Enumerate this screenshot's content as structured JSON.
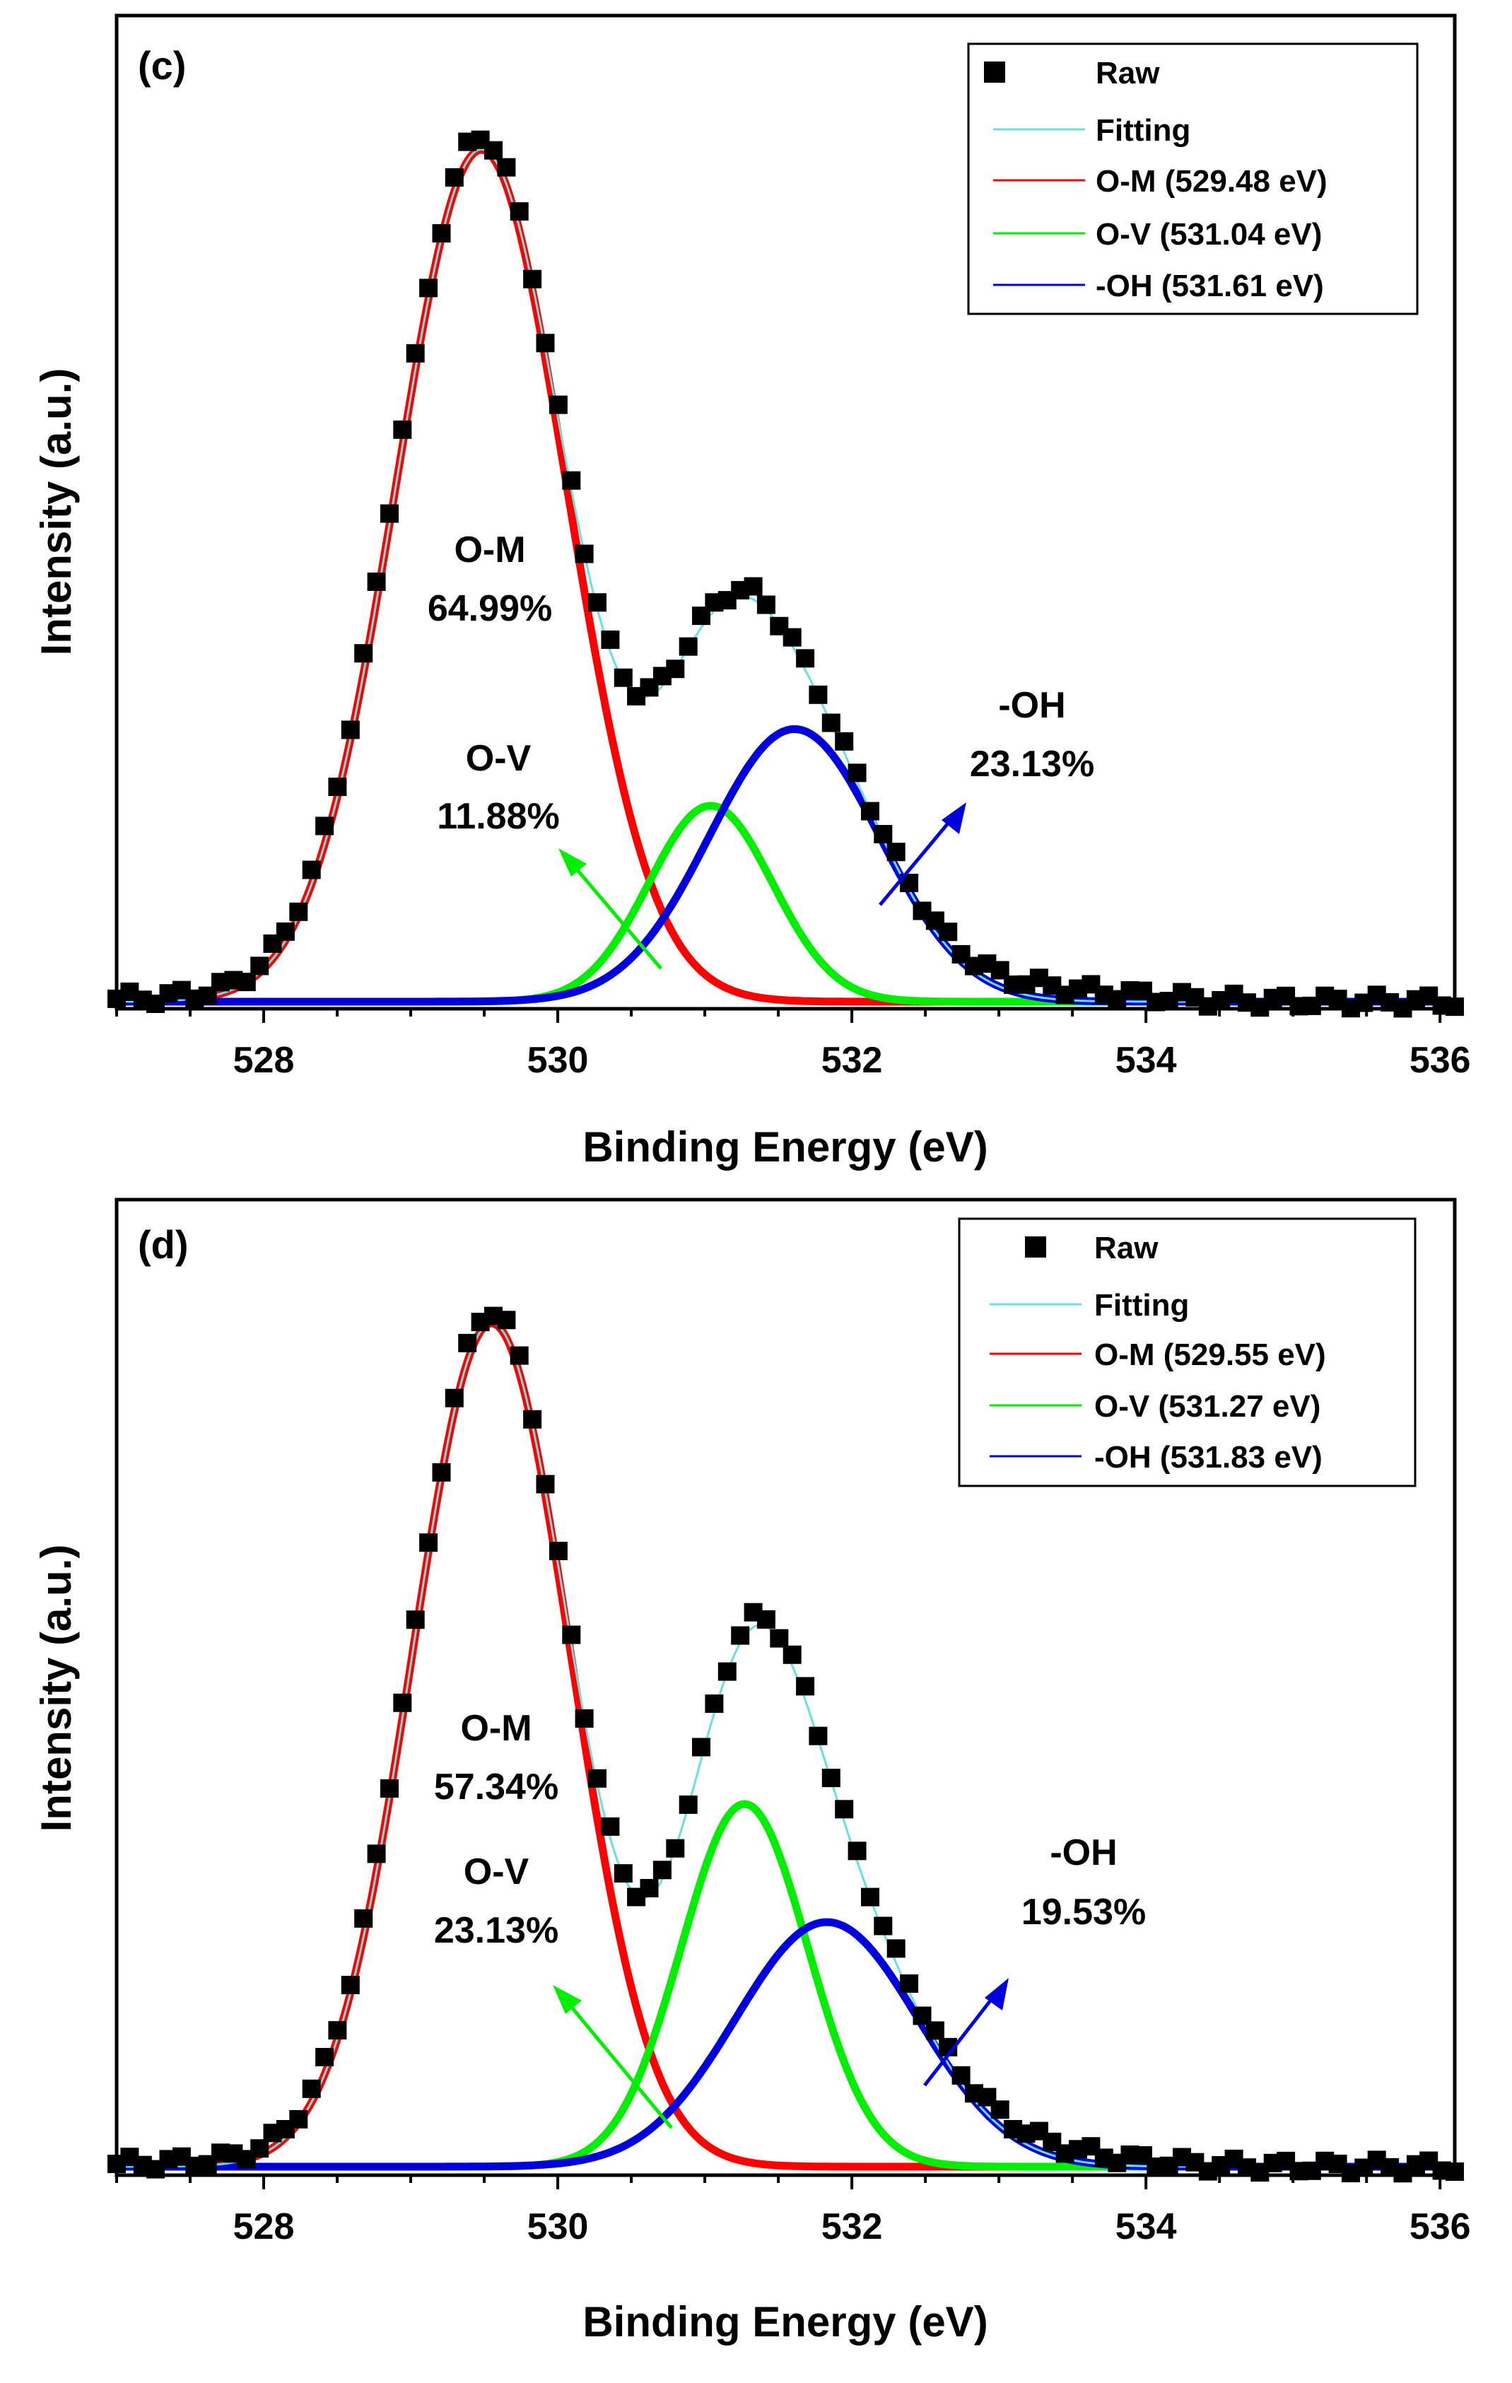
{
  "chart_data": [
    {
      "panel": "(c)",
      "type": "line",
      "xlabel": "Binding Energy (eV)",
      "ylabel": "Intensity (a.u.)",
      "xlim": [
        527,
        536.1
      ],
      "ylim": [
        0,
        1.05
      ],
      "xticks": [
        528,
        530,
        532,
        534,
        536
      ],
      "x_tick_labels": [
        "528",
        "530",
        "532",
        "534",
        "536"
      ],
      "yticks_shown": false,
      "grid": false,
      "legend_position": "top-right",
      "legend": [
        {
          "label": "Raw",
          "kind": "square"
        },
        {
          "label": "Fitting",
          "kind": "line",
          "color": "#66e0e0"
        },
        {
          "label": "O-M (529.48 eV)",
          "kind": "line",
          "color": "#ff0000"
        },
        {
          "label": "O-V (531.04 eV)",
          "kind": "line",
          "color": "#00ee00"
        },
        {
          "label": "-OH (531.61 eV)",
          "kind": "line",
          "color": "#0000dd"
        }
      ],
      "components": [
        {
          "name": "O-M (529.48 eV)",
          "center": 529.48,
          "amplitude": 1.0,
          "sigma": 0.58,
          "color": "#ff0000"
        },
        {
          "name": "O-V (531.04 eV)",
          "center": 531.04,
          "amplitude": 0.23,
          "sigma": 0.42,
          "color": "#00ee00"
        },
        {
          "name": "-OH (531.61 eV)",
          "center": 531.61,
          "amplitude": 0.32,
          "sigma": 0.58,
          "color": "#0000dd"
        }
      ],
      "raw_points": 104,
      "annotations": [
        {
          "label": "O-M",
          "value": "64.99%"
        },
        {
          "label": "O-V",
          "value": "11.88%",
          "arrow_color": "#00ee00"
        },
        {
          "label": "-OH",
          "value": "23.13%",
          "arrow_color": "#0000dd"
        }
      ]
    },
    {
      "panel": "(d)",
      "type": "line",
      "xlabel": "Binding Energy (eV)",
      "ylabel": "Intensity (a.u.)",
      "xlim": [
        527,
        536.1
      ],
      "ylim": [
        0,
        1.05
      ],
      "xticks": [
        528,
        530,
        532,
        534,
        536
      ],
      "x_tick_labels": [
        "528",
        "530",
        "532",
        "534",
        "536"
      ],
      "yticks_shown": false,
      "grid": false,
      "legend_position": "top-right",
      "legend": [
        {
          "label": "Raw",
          "kind": "square"
        },
        {
          "label": "Fitting",
          "kind": "line",
          "color": "#66e0e0"
        },
        {
          "label": "O-M (529.55 eV)",
          "kind": "line",
          "color": "#ff0000"
        },
        {
          "label": "O-V (531.27 eV)",
          "kind": "line",
          "color": "#00ee00"
        },
        {
          "label": "-OH (531.83 eV)",
          "kind": "line",
          "color": "#0000dd"
        }
      ],
      "components": [
        {
          "name": "O-M (529.55 eV)",
          "center": 529.55,
          "amplitude": 1.0,
          "sigma": 0.54,
          "color": "#ff0000"
        },
        {
          "name": "O-V (531.27 eV)",
          "center": 531.27,
          "amplitude": 0.43,
          "sigma": 0.43,
          "color": "#00ee00"
        },
        {
          "name": "-OH (531.83 eV)",
          "center": 531.83,
          "amplitude": 0.29,
          "sigma": 0.62,
          "color": "#0000dd"
        }
      ],
      "raw_points": 104,
      "annotations": [
        {
          "label": "O-M",
          "value": "57.34%"
        },
        {
          "label": "O-V",
          "value": "23.13%",
          "arrow_color": "#00ee00"
        },
        {
          "label": "-OH",
          "value": "19.53%",
          "arrow_color": "#0000dd"
        }
      ]
    }
  ]
}
